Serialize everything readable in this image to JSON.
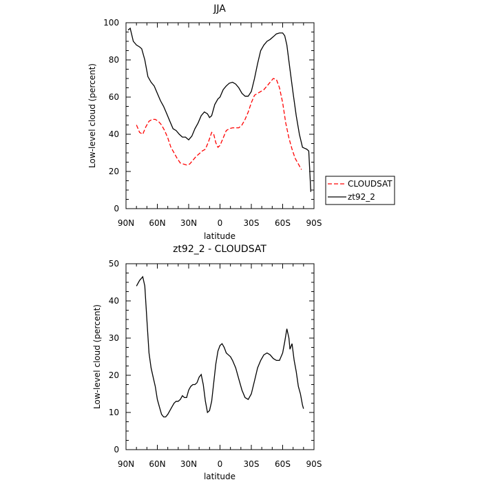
{
  "chart_data": [
    {
      "type": "line",
      "title": "JJA",
      "xlabel": "latitude",
      "ylabel": "Low-level cloud (percent)",
      "xlim": [
        90,
        -90
      ],
      "ylim": [
        0,
        100
      ],
      "x_ticks": [
        90,
        60,
        30,
        0,
        -30,
        -60,
        -90
      ],
      "x_tick_labels": [
        "90N",
        "60N",
        "30N",
        "0",
        "30S",
        "60S",
        "90S"
      ],
      "y_ticks": [
        0,
        20,
        40,
        60,
        80,
        100
      ],
      "y_tick_labels": [
        "0",
        "20",
        "40",
        "60",
        "80",
        "100"
      ],
      "legend": {
        "placement": "right",
        "entries": [
          {
            "name": "CLOUDSAT",
            "color": "#ff0000",
            "dash": true
          },
          {
            "name": "zt92_2",
            "color": "#000000",
            "dash": false
          }
        ]
      },
      "series": [
        {
          "name": "zt92_2",
          "color": "#000000",
          "dash": false,
          "points": [
            [
              88,
              96
            ],
            [
              86,
              97
            ],
            [
              83,
              90
            ],
            [
              80,
              88
            ],
            [
              77,
              87
            ],
            [
              75,
              86
            ],
            [
              72,
              80
            ],
            [
              69,
              71
            ],
            [
              66,
              68
            ],
            [
              63,
              66
            ],
            [
              60,
              62
            ],
            [
              57,
              58
            ],
            [
              54,
              55
            ],
            [
              51,
              51
            ],
            [
              48,
              47
            ],
            [
              45,
              43
            ],
            [
              42,
              42
            ],
            [
              39,
              40
            ],
            [
              36,
              38.5
            ],
            [
              33,
              38.5
            ],
            [
              30,
              37
            ],
            [
              27,
              39
            ],
            [
              24,
              43
            ],
            [
              21,
              46
            ],
            [
              18,
              50
            ],
            [
              15,
              52
            ],
            [
              12,
              51
            ],
            [
              10,
              49
            ],
            [
              8,
              50
            ],
            [
              5,
              56
            ],
            [
              2,
              59
            ],
            [
              0,
              60
            ],
            [
              -3,
              64
            ],
            [
              -6,
              66
            ],
            [
              -9,
              67.5
            ],
            [
              -12,
              68
            ],
            [
              -15,
              67
            ],
            [
              -18,
              65
            ],
            [
              -21,
              62
            ],
            [
              -24,
              60.5
            ],
            [
              -27,
              60.5
            ],
            [
              -30,
              63
            ],
            [
              -33,
              70
            ],
            [
              -36,
              78
            ],
            [
              -39,
              85
            ],
            [
              -42,
              88
            ],
            [
              -45,
              90
            ],
            [
              -48,
              91
            ],
            [
              -51,
              92.5
            ],
            [
              -54,
              94
            ],
            [
              -57,
              94.5
            ],
            [
              -60,
              94.5
            ],
            [
              -62,
              93
            ],
            [
              -64,
              88
            ],
            [
              -67,
              75
            ],
            [
              -70,
              62
            ],
            [
              -73,
              50
            ],
            [
              -76,
              40
            ],
            [
              -79,
              33
            ],
            [
              -81,
              32.5
            ],
            [
              -83,
              32
            ],
            [
              -85,
              31
            ],
            [
              -87,
              9
            ]
          ]
        },
        {
          "name": "CLOUDSAT",
          "color": "#ff0000",
          "dash": true,
          "points": [
            [
              80,
              45
            ],
            [
              77,
              41
            ],
            [
              74,
              40
            ],
            [
              71,
              44
            ],
            [
              68,
              47
            ],
            [
              65,
              48
            ],
            [
              62,
              48
            ],
            [
              59,
              47
            ],
            [
              56,
              45
            ],
            [
              53,
              42
            ],
            [
              50,
              38
            ],
            [
              47,
              33
            ],
            [
              44,
              30
            ],
            [
              41,
              27
            ],
            [
              38,
              24.5
            ],
            [
              35,
              24
            ],
            [
              32,
              23.5
            ],
            [
              29,
              24
            ],
            [
              26,
              26
            ],
            [
              23,
              28
            ],
            [
              20,
              29.5
            ],
            [
              17,
              31
            ],
            [
              14,
              32
            ],
            [
              11,
              36
            ],
            [
              8,
              41
            ],
            [
              6,
              40
            ],
            [
              4,
              35.5
            ],
            [
              2,
              33
            ],
            [
              0,
              34
            ],
            [
              -3,
              38
            ],
            [
              -6,
              42
            ],
            [
              -9,
              43
            ],
            [
              -12,
              43.5
            ],
            [
              -15,
              43.5
            ],
            [
              -18,
              43.5
            ],
            [
              -21,
              45
            ],
            [
              -24,
              48
            ],
            [
              -27,
              52
            ],
            [
              -30,
              57
            ],
            [
              -33,
              61
            ],
            [
              -36,
              62
            ],
            [
              -39,
              63
            ],
            [
              -42,
              64
            ],
            [
              -45,
              66
            ],
            [
              -48,
              68
            ],
            [
              -51,
              70
            ],
            [
              -54,
              69.5
            ],
            [
              -57,
              65
            ],
            [
              -60,
              57
            ],
            [
              -63,
              46
            ],
            [
              -66,
              38
            ],
            [
              -69,
              32
            ],
            [
              -72,
              27
            ],
            [
              -75,
              24
            ],
            [
              -78,
              21
            ]
          ]
        }
      ]
    },
    {
      "type": "line",
      "title": "zt92_2 - CLOUDSAT",
      "xlabel": "latitude",
      "ylabel": "Low-level cloud (percent)",
      "xlim": [
        90,
        -90
      ],
      "ylim": [
        0,
        50
      ],
      "x_ticks": [
        90,
        60,
        30,
        0,
        -30,
        -60,
        -90
      ],
      "x_tick_labels": [
        "90N",
        "60N",
        "30N",
        "0",
        "30S",
        "60S",
        "90S"
      ],
      "y_ticks": [
        0,
        10,
        20,
        30,
        40,
        50
      ],
      "y_tick_labels": [
        "0",
        "10",
        "20",
        "30",
        "40",
        "50"
      ],
      "series": [
        {
          "color": "#000000",
          "dash": false,
          "points": [
            [
              80,
              44
            ],
            [
              77,
              45.5
            ],
            [
              74,
              46.5
            ],
            [
              72,
              44
            ],
            [
              70,
              35
            ],
            [
              68,
              26
            ],
            [
              66,
              22
            ],
            [
              64,
              19.5
            ],
            [
              62,
              17
            ],
            [
              60,
              13.5
            ],
            [
              58,
              11.5
            ],
            [
              56,
              9.5
            ],
            [
              54,
              8.8
            ],
            [
              52,
              8.8
            ],
            [
              50,
              9.5
            ],
            [
              48,
              10.5
            ],
            [
              46,
              11.5
            ],
            [
              44,
              12.5
            ],
            [
              42,
              13
            ],
            [
              40,
              13
            ],
            [
              38,
              13.5
            ],
            [
              36,
              14.5
            ],
            [
              34,
              14
            ],
            [
              32,
              14
            ],
            [
              30,
              16
            ],
            [
              28,
              17
            ],
            [
              26,
              17.5
            ],
            [
              24,
              17.5
            ],
            [
              22,
              18
            ],
            [
              20,
              19.5
            ],
            [
              18,
              20.2
            ],
            [
              16,
              17.5
            ],
            [
              14,
              13
            ],
            [
              12,
              10
            ],
            [
              10,
              10.5
            ],
            [
              8,
              13
            ],
            [
              6,
              18
            ],
            [
              4,
              23
            ],
            [
              2,
              26.5
            ],
            [
              0,
              28
            ],
            [
              -2,
              28.5
            ],
            [
              -4,
              27.5
            ],
            [
              -6,
              26
            ],
            [
              -8,
              25.5
            ],
            [
              -10,
              25
            ],
            [
              -12,
              24
            ],
            [
              -15,
              22
            ],
            [
              -18,
              19
            ],
            [
              -21,
              16
            ],
            [
              -24,
              14
            ],
            [
              -27,
              13.5
            ],
            [
              -30,
              15
            ],
            [
              -33,
              18.5
            ],
            [
              -36,
              22
            ],
            [
              -39,
              24
            ],
            [
              -42,
              25.5
            ],
            [
              -45,
              26
            ],
            [
              -48,
              25.5
            ],
            [
              -51,
              24.5
            ],
            [
              -54,
              24
            ],
            [
              -57,
              24
            ],
            [
              -60,
              26
            ],
            [
              -62,
              29
            ],
            [
              -64,
              32.5
            ],
            [
              -66,
              30
            ],
            [
              -67,
              27
            ],
            [
              -69,
              28.5
            ],
            [
              -71,
              24
            ],
            [
              -73,
              21
            ],
            [
              -75,
              17
            ],
            [
              -77,
              15
            ],
            [
              -79,
              12
            ],
            [
              -80,
              11
            ]
          ]
        }
      ]
    }
  ]
}
